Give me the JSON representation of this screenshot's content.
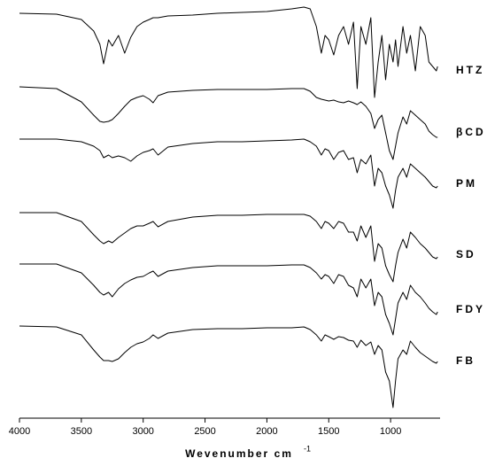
{
  "chart_data": {
    "type": "line",
    "x_label": "Wevenumber cm",
    "x_label_superscript": "-1",
    "x": [
      4000,
      3700,
      3500,
      3400,
      3350,
      3320,
      3280,
      3250,
      3200,
      3150,
      3100,
      3050,
      3000,
      2950,
      2920,
      2880,
      2800,
      2600,
      2400,
      2200,
      2000,
      1800,
      1700,
      1650,
      1600,
      1560,
      1530,
      1500,
      1460,
      1420,
      1380,
      1340,
      1300,
      1270,
      1240,
      1200,
      1160,
      1130,
      1100,
      1070,
      1040,
      1010,
      980,
      960,
      940,
      900,
      870,
      840,
      800,
      760,
      720,
      690,
      660,
      630,
      620
    ],
    "xlim": [
      4000,
      600
    ],
    "xticks": [
      4000,
      3500,
      3000,
      2500,
      2000,
      1500,
      1000
    ],
    "ylim": [
      472,
      0
    ],
    "series": [
      {
        "name": "HTZ",
        "color": "#000000",
        "values": [
          15,
          16,
          22,
          35,
          50,
          72,
          45,
          52,
          40,
          60,
          42,
          30,
          25,
          22,
          20,
          20,
          18,
          17,
          15,
          14,
          13,
          10,
          8,
          10,
          30,
          60,
          40,
          45,
          62,
          40,
          30,
          50,
          25,
          100,
          30,
          50,
          20,
          110,
          70,
          40,
          90,
          50,
          70,
          45,
          75,
          30,
          60,
          40,
          80,
          30,
          40,
          70,
          75,
          80,
          75
        ]
      },
      {
        "name": "βCD",
        "color": "#000000",
        "values": [
          98,
          100,
          115,
          130,
          137,
          138,
          137,
          135,
          128,
          120,
          113,
          110,
          108,
          112,
          116,
          108,
          104,
          102,
          101,
          101,
          101,
          100,
          100,
          103,
          110,
          112,
          113,
          114,
          113,
          115,
          116,
          114,
          116,
          118,
          115,
          120,
          128,
          145,
          135,
          130,
          150,
          170,
          180,
          165,
          150,
          132,
          140,
          125,
          130,
          135,
          140,
          148,
          152,
          155,
          155
        ]
      },
      {
        "name": "PM",
        "color": "#000000",
        "values": [
          157,
          157,
          160,
          165,
          170,
          178,
          175,
          178,
          176,
          178,
          182,
          176,
          172,
          170,
          168,
          175,
          166,
          162,
          160,
          160,
          159,
          158,
          157,
          160,
          165,
          175,
          168,
          170,
          180,
          172,
          170,
          180,
          178,
          195,
          180,
          185,
          175,
          210,
          190,
          195,
          210,
          220,
          235,
          215,
          200,
          190,
          200,
          185,
          190,
          195,
          200,
          205,
          210,
          212,
          210
        ]
      },
      {
        "name": "SD",
        "color": "#000000",
        "values": [
          240,
          240,
          250,
          265,
          272,
          275,
          272,
          274,
          268,
          263,
          258,
          255,
          255,
          252,
          250,
          256,
          250,
          245,
          243,
          243,
          242,
          242,
          242,
          244,
          250,
          258,
          250,
          252,
          258,
          250,
          252,
          262,
          262,
          272,
          255,
          268,
          255,
          295,
          275,
          280,
          300,
          310,
          318,
          300,
          285,
          270,
          280,
          262,
          268,
          275,
          280,
          285,
          290,
          292,
          290
        ]
      },
      {
        "name": "FDY",
        "color": "#000000",
        "values": [
          298,
          298,
          308,
          322,
          330,
          333,
          330,
          335,
          326,
          320,
          316,
          313,
          312,
          308,
          306,
          312,
          306,
          302,
          300,
          300,
          300,
          299,
          299,
          302,
          308,
          315,
          310,
          312,
          320,
          310,
          312,
          322,
          325,
          335,
          315,
          325,
          315,
          345,
          330,
          335,
          355,
          365,
          378,
          360,
          342,
          330,
          338,
          322,
          330,
          335,
          342,
          348,
          352,
          355,
          352
        ]
      },
      {
        "name": "FB",
        "color": "#000000",
        "values": [
          368,
          369,
          378,
          395,
          403,
          407,
          407,
          408,
          405,
          398,
          392,
          388,
          386,
          382,
          378,
          382,
          376,
          372,
          371,
          371,
          370,
          370,
          369,
          372,
          378,
          385,
          378,
          380,
          383,
          380,
          381,
          384,
          385,
          392,
          384,
          390,
          386,
          400,
          390,
          395,
          420,
          430,
          460,
          430,
          405,
          395,
          400,
          385,
          392,
          398,
          402,
          405,
          408,
          410,
          408
        ]
      }
    ]
  }
}
